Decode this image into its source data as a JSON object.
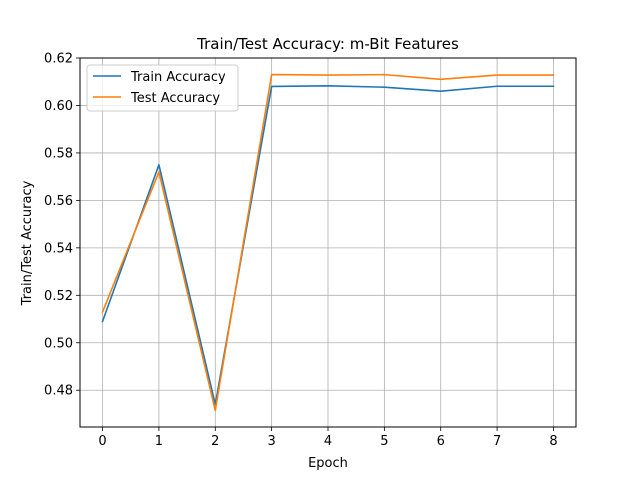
{
  "chart_data": {
    "type": "line",
    "title": "Train/Test Accuracy: m-Bit Features",
    "xlabel": "Epoch",
    "ylabel": "Train/Test Accuracy",
    "x": [
      0,
      1,
      2,
      3,
      4,
      5,
      6,
      7,
      8
    ],
    "xlim": [
      -0.4,
      8.4
    ],
    "ylim": [
      0.4645,
      0.62
    ],
    "xticks": [
      0,
      1,
      2,
      3,
      4,
      5,
      6,
      7,
      8
    ],
    "yticks": [
      0.48,
      0.5,
      0.52,
      0.54,
      0.56,
      0.58,
      0.6,
      0.62
    ],
    "ytick_labels": [
      "0.48",
      "0.50",
      "0.52",
      "0.54",
      "0.56",
      "0.58",
      "0.60",
      "0.62"
    ],
    "grid": true,
    "legend_position": "top-left",
    "series": [
      {
        "name": "Train Accuracy",
        "color": "#1f77b4",
        "values": [
          0.509,
          0.575,
          0.474,
          0.608,
          0.6083,
          0.6077,
          0.606,
          0.6081,
          0.6081
        ]
      },
      {
        "name": "Test Accuracy",
        "color": "#ff7f0e",
        "values": [
          0.513,
          0.572,
          0.4715,
          0.613,
          0.6128,
          0.613,
          0.611,
          0.6128,
          0.6128
        ]
      }
    ]
  }
}
